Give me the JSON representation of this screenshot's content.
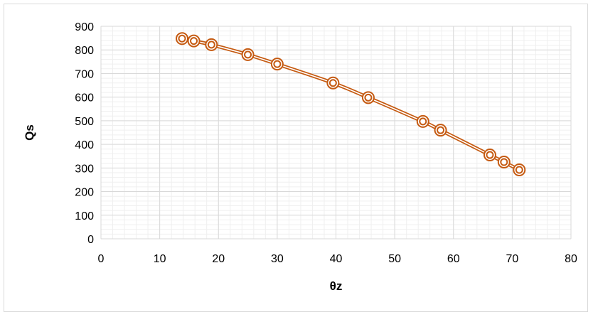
{
  "chart_data": {
    "type": "scatter",
    "xlabel": "θz",
    "ylabel": "Qs",
    "xlim": [
      0,
      80
    ],
    "ylim": [
      0,
      900
    ],
    "x_ticks": [
      0,
      10,
      20,
      30,
      40,
      50,
      60,
      70,
      80
    ],
    "y_ticks": [
      0,
      100,
      200,
      300,
      400,
      500,
      600,
      700,
      800,
      900
    ],
    "grid": "major-and-minor",
    "legend": "none",
    "series": [
      {
        "color": "#c55a11",
        "marker": "double-circle",
        "line": "double-smooth",
        "x": [
          13.8,
          15.8,
          18.8,
          25.0,
          30.0,
          39.5,
          45.5,
          54.8,
          57.8,
          66.2,
          68.6,
          71.2
        ],
        "y": [
          848,
          838,
          822,
          780,
          740,
          660,
          598,
          497,
          460,
          355,
          325,
          292
        ]
      }
    ],
    "colors": {
      "gridline": "#d9d9d9",
      "minor_gridline": "#efefef",
      "frame": "#d9d9d9"
    }
  }
}
